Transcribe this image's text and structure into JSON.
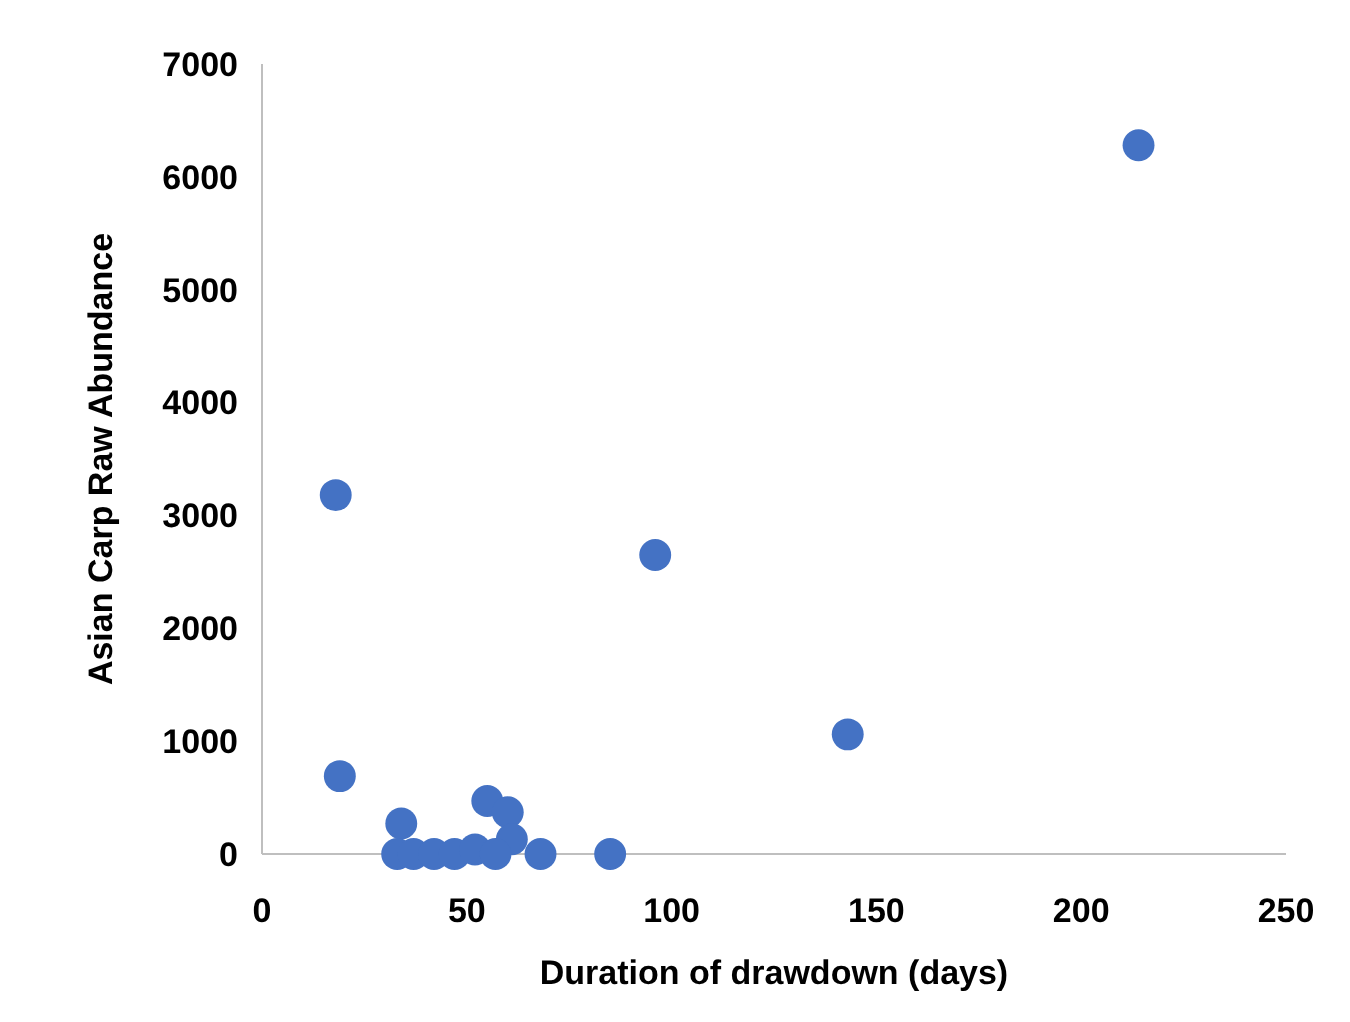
{
  "chart_data": {
    "type": "scatter",
    "xlabel": "Duration of drawdown (days)",
    "ylabel": "Asian Carp Raw Abundance",
    "x": [
      18,
      19,
      34,
      55,
      60,
      61,
      96,
      143,
      214,
      85,
      68,
      33,
      37,
      42,
      47,
      52,
      57
    ],
    "series": [
      {
        "color": "#4472c4",
        "values": [
          3180,
          690,
          270,
          470,
          370,
          130,
          2650,
          1060,
          6280,
          0,
          0,
          0,
          0,
          0,
          0,
          40,
          0
        ]
      }
    ],
    "xlim": [
      0,
      250
    ],
    "xticks": [
      0,
      50,
      100,
      150,
      200,
      250
    ],
    "ylim": [
      0,
      7000
    ],
    "yticks": [
      0,
      1000,
      2000,
      3000,
      4000,
      5000,
      6000,
      7000
    ],
    "grid": false,
    "marker": "circle"
  }
}
